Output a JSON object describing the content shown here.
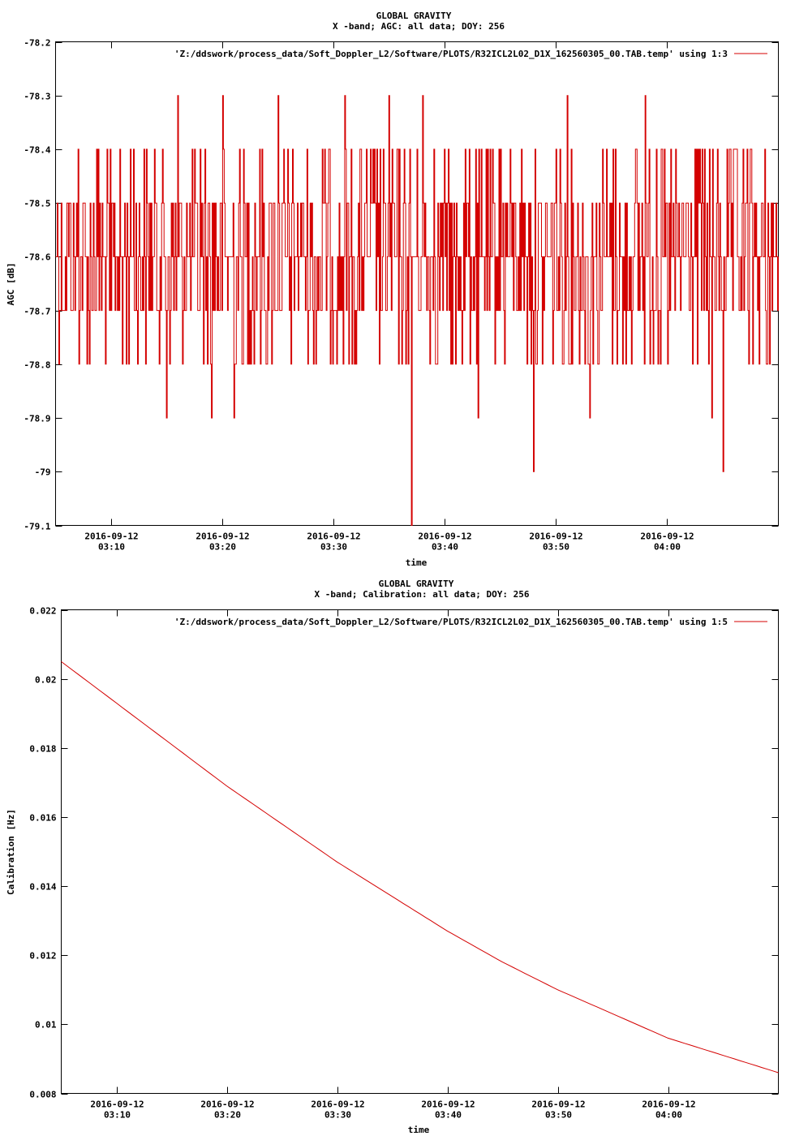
{
  "chart_data": [
    {
      "type": "line",
      "title": "GLOBAL GRAVITY",
      "subtitle": "X -band; AGC: all data; DOY: 256",
      "xlabel": "time",
      "ylabel": "AGC [dB]",
      "xlim": [
        "2016-09-12 03:05:00",
        "2016-09-12 04:10:00"
      ],
      "ylim": [
        -79.1,
        -78.2
      ],
      "y_ticks": [
        "-78.2",
        "-78.3",
        "-78.4",
        "-78.5",
        "-78.6",
        "-78.7",
        "-78.8",
        "-78.9",
        "-79",
        "-79.1"
      ],
      "x_ticks": [
        {
          "date": "2016-09-12",
          "time": "03:10",
          "value": "2016-09-12 03:10:00"
        },
        {
          "date": "2016-09-12",
          "time": "03:20",
          "value": "2016-09-12 03:20:00"
        },
        {
          "date": "2016-09-12",
          "time": "03:30",
          "value": "2016-09-12 03:30:00"
        },
        {
          "date": "2016-09-12",
          "time": "03:40",
          "value": "2016-09-12 03:40:00"
        },
        {
          "date": "2016-09-12",
          "time": "03:50",
          "value": "2016-09-12 03:50:00"
        },
        {
          "date": "2016-09-12",
          "time": "04:00",
          "value": "2016-09-12 04:00:00"
        }
      ],
      "grid": false,
      "legend_position": "top-right",
      "series": [
        {
          "name": "'Z:/ddswork/process_data/Soft_Doppler_L2/Software/PLOTS/R32ICL2L02_D1X_162560305_00.TAB.temp' using 1:3",
          "color": "#d40000",
          "x": [
            "2016-09-12 03:05:00",
            "2016-09-12 03:06:00",
            "2016-09-12 03:07:00",
            "2016-09-12 03:08:00",
            "2016-09-12 03:09:00",
            "2016-09-12 03:10:00",
            "2016-09-12 03:11:00",
            "2016-09-12 03:12:00",
            "2016-09-12 03:13:00",
            "2016-09-12 03:14:00",
            "2016-09-12 03:15:00",
            "2016-09-12 03:16:00",
            "2016-09-12 03:17:00",
            "2016-09-12 03:18:00",
            "2016-09-12 03:19:00",
            "2016-09-12 03:20:00",
            "2016-09-12 03:21:00",
            "2016-09-12 03:22:00",
            "2016-09-12 03:23:00",
            "2016-09-12 03:24:00",
            "2016-09-12 03:25:00",
            "2016-09-12 03:26:00",
            "2016-09-12 03:27:00",
            "2016-09-12 03:28:00",
            "2016-09-12 03:29:00",
            "2016-09-12 03:30:00",
            "2016-09-12 03:31:00",
            "2016-09-12 03:32:00",
            "2016-09-12 03:33:00",
            "2016-09-12 03:34:00",
            "2016-09-12 03:35:00",
            "2016-09-12 03:36:00",
            "2016-09-12 03:37:00",
            "2016-09-12 03:38:00",
            "2016-09-12 03:39:00",
            "2016-09-12 03:40:00",
            "2016-09-12 03:41:00",
            "2016-09-12 03:42:00",
            "2016-09-12 03:43:00",
            "2016-09-12 03:44:00",
            "2016-09-12 03:45:00",
            "2016-09-12 03:46:00",
            "2016-09-12 03:47:00",
            "2016-09-12 03:48:00",
            "2016-09-12 03:49:00",
            "2016-09-12 03:50:00",
            "2016-09-12 03:51:00",
            "2016-09-12 03:52:00",
            "2016-09-12 03:53:00",
            "2016-09-12 03:54:00",
            "2016-09-12 03:55:00",
            "2016-09-12 03:56:00",
            "2016-09-12 03:57:00",
            "2016-09-12 03:58:00",
            "2016-09-12 03:59:00",
            "2016-09-12 04:00:00",
            "2016-09-12 04:01:00",
            "2016-09-12 04:02:00",
            "2016-09-12 04:03:00",
            "2016-09-12 04:04:00",
            "2016-09-12 04:05:00",
            "2016-09-12 04:06:00",
            "2016-09-12 04:07:00",
            "2016-09-12 04:08:00",
            "2016-09-12 04:09:00",
            "2016-09-12 04:10:00"
          ],
          "y": [
            -78.6,
            -78.5,
            -78.4,
            -78.8,
            -78.5,
            -78.7,
            -78.8,
            -78.4,
            -78.6,
            -78.5,
            -78.9,
            -78.3,
            -78.6,
            -78.4,
            -78.9,
            -78.3,
            -78.9,
            -78.5,
            -78.6,
            -78.8,
            -78.3,
            -78.7,
            -78.5,
            -78.6,
            -78.4,
            -78.7,
            -78.3,
            -78.8,
            -78.6,
            -78.5,
            -78.3,
            -78.6,
            -79.1,
            -78.3,
            -78.4,
            -78.6,
            -78.8,
            -78.5,
            -78.9,
            -78.7,
            -78.4,
            -78.6,
            -78.5,
            -79.0,
            -78.6,
            -78.4,
            -78.3,
            -78.7,
            -78.9,
            -78.6,
            -78.5,
            -78.8,
            -78.6,
            -78.3,
            -78.4,
            -78.8,
            -78.6,
            -78.7,
            -78.5,
            -78.9,
            -79.0,
            -78.4,
            -78.6,
            -78.5,
            -78.8,
            -78.6
          ]
        }
      ]
    },
    {
      "type": "line",
      "title": "GLOBAL GRAVITY",
      "subtitle": "X -band; Calibration: all data; DOY: 256",
      "xlabel": "time",
      "ylabel": "Calibration [Hz]",
      "xlim": [
        "2016-09-12 03:05:00",
        "2016-09-12 04:10:00"
      ],
      "ylim": [
        0.008,
        0.022
      ],
      "y_ticks": [
        "0.022",
        "0.02",
        "0.018",
        "0.016",
        "0.014",
        "0.012",
        "0.01",
        "0.008"
      ],
      "x_ticks": [
        {
          "date": "2016-09-12",
          "time": "03:10",
          "value": "2016-09-12 03:10:00"
        },
        {
          "date": "2016-09-12",
          "time": "03:20",
          "value": "2016-09-12 03:20:00"
        },
        {
          "date": "2016-09-12",
          "time": "03:30",
          "value": "2016-09-12 03:30:00"
        },
        {
          "date": "2016-09-12",
          "time": "03:40",
          "value": "2016-09-12 03:40:00"
        },
        {
          "date": "2016-09-12",
          "time": "03:50",
          "value": "2016-09-12 03:50:00"
        },
        {
          "date": "2016-09-12",
          "time": "04:00",
          "value": "2016-09-12 04:00:00"
        }
      ],
      "grid": false,
      "legend_position": "top-right",
      "series": [
        {
          "name": "'Z:/ddswork/process_data/Soft_Doppler_L2/Software/PLOTS/R32ICL2L02_D1X_162560305_00.TAB.temp' using 1:5",
          "color": "#d40000",
          "x": [
            "2016-09-12 03:05:00",
            "2016-09-12 03:10:00",
            "2016-09-12 03:15:00",
            "2016-09-12 03:20:00",
            "2016-09-12 03:25:00",
            "2016-09-12 03:30:00",
            "2016-09-12 03:35:00",
            "2016-09-12 03:40:00",
            "2016-09-12 03:45:00",
            "2016-09-12 03:50:00",
            "2016-09-12 03:55:00",
            "2016-09-12 04:00:00",
            "2016-09-12 04:05:00",
            "2016-09-12 04:10:00"
          ],
          "y": [
            0.0205,
            0.0193,
            0.0181,
            0.0169,
            0.0158,
            0.0147,
            0.0137,
            0.0127,
            0.0118,
            0.011,
            0.0103,
            0.0096,
            0.0091,
            0.0086
          ]
        }
      ]
    }
  ]
}
